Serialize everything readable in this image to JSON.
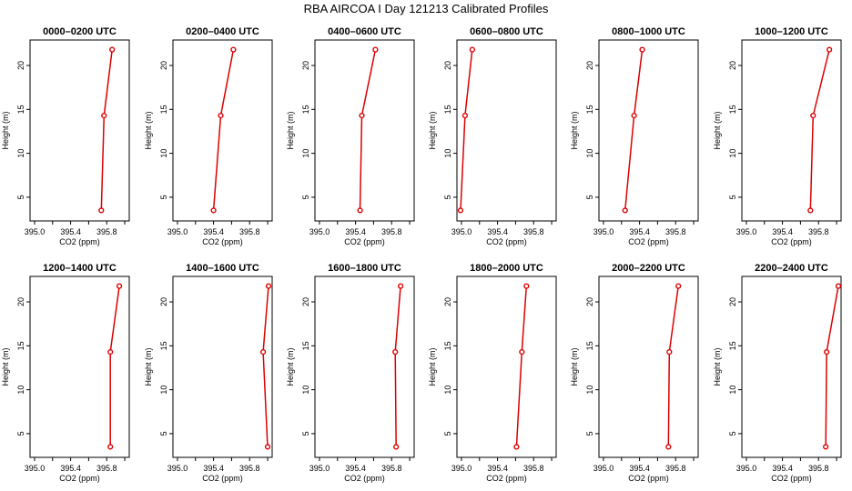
{
  "figure": {
    "title": "RBA AIRCOA I  Day 121213  Calibrated Profiles"
  },
  "chart_data": [
    {
      "type": "line",
      "title": "0000–0200 UTC",
      "xlabel": "CO2 (ppm)",
      "ylabel": "Height (m)",
      "xlim": [
        394.95,
        396.05
      ],
      "ylim": [
        2.3,
        22.9
      ],
      "xticks": [
        "395.0",
        "395.4",
        "395.8"
      ],
      "yticks": [
        "5",
        "10",
        "15",
        "20"
      ],
      "grid": false,
      "color": "#dd0000",
      "series": [
        {
          "x": [
            395.74,
            395.77,
            395.86
          ],
          "y": [
            3.5,
            14.3,
            21.8
          ]
        }
      ]
    },
    {
      "type": "line",
      "title": "0200–0400 UTC",
      "xlabel": "CO2 (ppm)",
      "ylabel": "Height (m)",
      "xlim": [
        394.95,
        396.05
      ],
      "ylim": [
        2.3,
        22.9
      ],
      "xticks": [
        "395.0",
        "395.4",
        "395.8"
      ],
      "yticks": [
        "5",
        "10",
        "15",
        "20"
      ],
      "grid": false,
      "color": "#dd0000",
      "series": [
        {
          "x": [
            395.4,
            395.48,
            395.62
          ],
          "y": [
            3.5,
            14.3,
            21.8
          ]
        }
      ]
    },
    {
      "type": "line",
      "title": "0400–0600 UTC",
      "xlabel": "CO2 (ppm)",
      "ylabel": "Height (m)",
      "xlim": [
        394.95,
        396.05
      ],
      "ylim": [
        2.3,
        22.9
      ],
      "xticks": [
        "395.0",
        "395.4",
        "395.8"
      ],
      "yticks": [
        "5",
        "10",
        "15",
        "20"
      ],
      "grid": false,
      "color": "#dd0000",
      "series": [
        {
          "x": [
            395.45,
            395.47,
            395.62
          ],
          "y": [
            3.5,
            14.3,
            21.8
          ]
        }
      ]
    },
    {
      "type": "line",
      "title": "0600–0800 UTC",
      "xlabel": "CO2 (ppm)",
      "ylabel": "Height (m)",
      "xlim": [
        394.95,
        396.05
      ],
      "ylim": [
        2.3,
        22.9
      ],
      "xticks": [
        "395.0",
        "395.4",
        "395.8"
      ],
      "yticks": [
        "5",
        "10",
        "15",
        "20"
      ],
      "grid": false,
      "color": "#dd0000",
      "series": [
        {
          "x": [
            394.99,
            395.04,
            395.12
          ],
          "y": [
            3.5,
            14.3,
            21.8
          ]
        }
      ]
    },
    {
      "type": "line",
      "title": "0800–1000 UTC",
      "xlabel": "CO2 (ppm)",
      "ylabel": "Height (m)",
      "xlim": [
        394.95,
        396.05
      ],
      "ylim": [
        2.3,
        22.9
      ],
      "xticks": [
        "395.0",
        "395.4",
        "395.8"
      ],
      "yticks": [
        "5",
        "10",
        "15",
        "20"
      ],
      "grid": false,
      "color": "#dd0000",
      "series": [
        {
          "x": [
            395.24,
            395.34,
            395.43
          ],
          "y": [
            3.5,
            14.3,
            21.8
          ]
        }
      ]
    },
    {
      "type": "line",
      "title": "1000–1200 UTC",
      "xlabel": "CO2 (ppm)",
      "ylabel": "Height (m)",
      "xlim": [
        394.95,
        396.05
      ],
      "ylim": [
        2.3,
        22.9
      ],
      "xticks": [
        "395.0",
        "395.4",
        "395.8"
      ],
      "yticks": [
        "5",
        "10",
        "15",
        "20"
      ],
      "grid": false,
      "color": "#dd0000",
      "series": [
        {
          "x": [
            395.71,
            395.74,
            395.92
          ],
          "y": [
            3.5,
            14.3,
            21.8
          ]
        }
      ]
    },
    {
      "type": "line",
      "title": "1200–1400 UTC",
      "xlabel": "CO2 (ppm)",
      "ylabel": "Height (m)",
      "xlim": [
        394.95,
        396.05
      ],
      "ylim": [
        2.3,
        22.9
      ],
      "xticks": [
        "395.0",
        "395.4",
        "395.8"
      ],
      "yticks": [
        "5",
        "10",
        "15",
        "20"
      ],
      "grid": false,
      "color": "#dd0000",
      "series": [
        {
          "x": [
            395.84,
            395.84,
            395.94
          ],
          "y": [
            3.5,
            14.3,
            21.8
          ]
        }
      ]
    },
    {
      "type": "line",
      "title": "1400–1600 UTC",
      "xlabel": "CO2 (ppm)",
      "ylabel": "Height (m)",
      "xlim": [
        394.95,
        396.05
      ],
      "ylim": [
        2.3,
        22.9
      ],
      "xticks": [
        "395.0",
        "395.4",
        "395.8"
      ],
      "yticks": [
        "5",
        "10",
        "15",
        "20"
      ],
      "grid": false,
      "color": "#dd0000",
      "series": [
        {
          "x": [
            396.0,
            395.95,
            396.01
          ],
          "y": [
            3.5,
            14.3,
            21.8
          ]
        }
      ]
    },
    {
      "type": "line",
      "title": "1600–1800 UTC",
      "xlabel": "CO2 (ppm)",
      "ylabel": "Height (m)",
      "xlim": [
        394.95,
        396.05
      ],
      "ylim": [
        2.3,
        22.9
      ],
      "xticks": [
        "395.0",
        "395.4",
        "395.8"
      ],
      "yticks": [
        "5",
        "10",
        "15",
        "20"
      ],
      "grid": false,
      "color": "#dd0000",
      "series": [
        {
          "x": [
            395.85,
            395.84,
            395.9
          ],
          "y": [
            3.5,
            14.3,
            21.8
          ]
        }
      ]
    },
    {
      "type": "line",
      "title": "1800–2000 UTC",
      "xlabel": "CO2 (ppm)",
      "ylabel": "Height (m)",
      "xlim": [
        394.95,
        396.05
      ],
      "ylim": [
        2.3,
        22.9
      ],
      "xticks": [
        "395.0",
        "395.4",
        "395.8"
      ],
      "yticks": [
        "5",
        "10",
        "15",
        "20"
      ],
      "grid": false,
      "color": "#dd0000",
      "series": [
        {
          "x": [
            395.61,
            395.67,
            395.72
          ],
          "y": [
            3.5,
            14.3,
            21.8
          ]
        }
      ]
    },
    {
      "type": "line",
      "title": "2000–2200 UTC",
      "xlabel": "CO2 (ppm)",
      "ylabel": "Height (m)",
      "xlim": [
        394.95,
        396.05
      ],
      "ylim": [
        2.3,
        22.9
      ],
      "xticks": [
        "395.0",
        "395.4",
        "395.8"
      ],
      "yticks": [
        "5",
        "10",
        "15",
        "20"
      ],
      "grid": false,
      "color": "#dd0000",
      "series": [
        {
          "x": [
            395.72,
            395.73,
            395.83
          ],
          "y": [
            3.5,
            14.3,
            21.8
          ]
        }
      ]
    },
    {
      "type": "line",
      "title": "2200–2400 UTC",
      "xlabel": "CO2 (ppm)",
      "ylabel": "Height (m)",
      "xlim": [
        394.95,
        396.05
      ],
      "ylim": [
        2.3,
        22.9
      ],
      "xticks": [
        "395.0",
        "395.4",
        "395.8"
      ],
      "yticks": [
        "5",
        "10",
        "15",
        "20"
      ],
      "grid": false,
      "color": "#dd0000",
      "series": [
        {
          "x": [
            395.88,
            395.89,
            396.02
          ],
          "y": [
            3.5,
            14.3,
            21.8
          ]
        }
      ]
    }
  ]
}
